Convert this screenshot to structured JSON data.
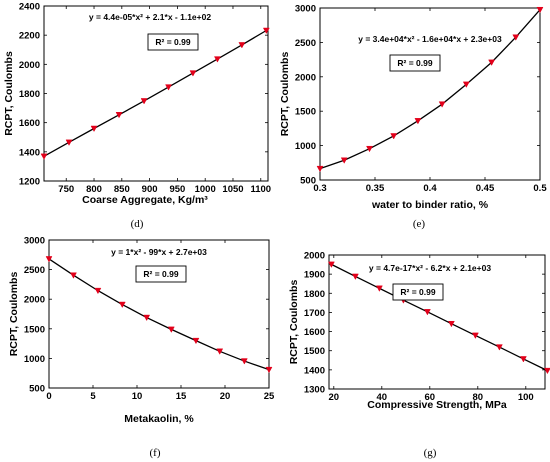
{
  "chart_data": [
    {
      "type": "line",
      "caption": "(d)",
      "equation": "y = 4.4e-05*x² + 2.1*x - 1.1e+02",
      "r2": "R² = 0.99",
      "xlabel": "Coarse Aggregate, Kg/m³",
      "ylabel": "RCPT, Coulombs",
      "xlim": [
        710,
        1113
      ],
      "ylim": [
        1200,
        2400
      ],
      "xticks": [
        750,
        800,
        850,
        900,
        950,
        1000,
        1050,
        1100
      ],
      "yticks": [
        1200,
        1400,
        1600,
        1800,
        2000,
        2200,
        2400
      ],
      "series": [
        {
          "x": [
            710,
            755,
            800,
            845,
            890,
            934,
            978,
            1022,
            1066,
            1110
          ],
          "y": [
            1369,
            1465,
            1560,
            1654,
            1749,
            1844,
            1940,
            2036,
            2133,
            2232
          ]
        }
      ],
      "grid": false,
      "line_color": "#000000",
      "marker_color": "#e2001a"
    },
    {
      "type": "line",
      "caption": "(e)",
      "equation": "y = 3.4e+04*x² - 1.6e+04*x + 2.3e+03",
      "r2": "R² = 0.99",
      "xlabel": "water to binder ratio, %",
      "ylabel": "RCPT, Coulombs",
      "xlim": [
        0.3,
        0.5
      ],
      "ylim": [
        500,
        3000
      ],
      "xticks": [
        0.3,
        0.35,
        0.4,
        0.45,
        0.5
      ],
      "yticks": [
        500,
        1000,
        1500,
        2000,
        2500,
        3000
      ],
      "series": [
        {
          "x": [
            0.3,
            0.322,
            0.345,
            0.367,
            0.389,
            0.411,
            0.433,
            0.456,
            0.478,
            0.5
          ],
          "y": [
            665,
            787,
            955,
            1140,
            1360,
            1602,
            1890,
            2210,
            2575,
            2975
          ]
        }
      ],
      "grid": false,
      "line_color": "#000000",
      "marker_color": "#e2001a"
    },
    {
      "type": "line",
      "caption": "(f)",
      "equation": "y = 1*x² - 99*x + 2.7e+03",
      "r2": "R² = 0.99",
      "xlabel": "Metakaolin, %",
      "ylabel": "RCPT, Coulombs",
      "xlim": [
        0,
        25
      ],
      "ylim": [
        500,
        3000
      ],
      "xticks": [
        0,
        5,
        10,
        15,
        20,
        25
      ],
      "yticks": [
        500,
        1000,
        1500,
        2000,
        2500,
        3000
      ],
      "series": [
        {
          "x": [
            0,
            2.78,
            5.56,
            8.33,
            11.1,
            13.9,
            16.7,
            19.4,
            22.2,
            25
          ],
          "y": [
            2680,
            2405,
            2145,
            1910,
            1690,
            1490,
            1300,
            1120,
            955,
            810
          ]
        }
      ],
      "grid": false,
      "line_color": "#000000",
      "marker_color": "#e2001a"
    },
    {
      "type": "line",
      "caption": "(g)",
      "equation": "y = 4.7e-17*x² - 6.2*x + 2.1e+03",
      "r2": "R² = 0.99",
      "xlabel": "Compressive Strength, MPa",
      "ylabel": "RCPT, Coulombs",
      "xlim": [
        18,
        108
      ],
      "ylim": [
        1300,
        2000
      ],
      "xticks": [
        20,
        40,
        60,
        80,
        100
      ],
      "yticks": [
        1300,
        1400,
        1500,
        1600,
        1700,
        1800,
        1900,
        2000
      ],
      "series": [
        {
          "x": [
            19,
            29,
            39,
            49,
            59,
            69,
            79,
            89,
            99,
            109
          ],
          "y": [
            1951,
            1888,
            1826,
            1764,
            1703,
            1641,
            1580,
            1519,
            1457,
            1396
          ]
        }
      ],
      "grid": false,
      "line_color": "#000000",
      "marker_color": "#e2001a"
    }
  ]
}
